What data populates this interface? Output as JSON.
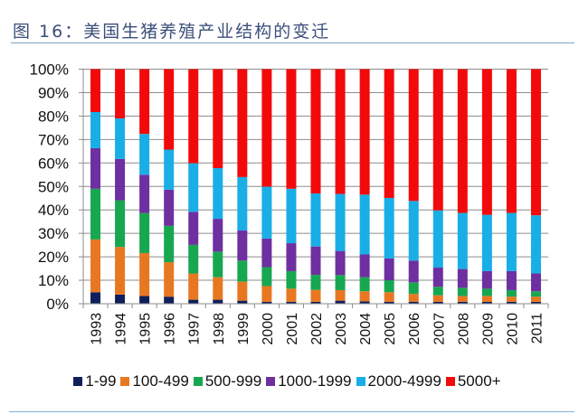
{
  "header": {
    "title": "图 16：美国生猪养殖产业结构的变迁"
  },
  "chart_data": {
    "type": "bar",
    "stacked": true,
    "percent_stacked": true,
    "title": "图 16：美国生猪养殖产业结构的变迁",
    "xlabel": "",
    "ylabel": "",
    "ylim": [
      0,
      100
    ],
    "yticks": [
      "0%",
      "10%",
      "20%",
      "30%",
      "40%",
      "50%",
      "60%",
      "70%",
      "80%",
      "90%",
      "100%"
    ],
    "grid": true,
    "legend_position": "bottom",
    "categories": [
      "1993",
      "1994",
      "1995",
      "1996",
      "1997",
      "1998",
      "1999",
      "2000",
      "2001",
      "2002",
      "2003",
      "2004",
      "2005",
      "2006",
      "2007",
      "2008",
      "2009",
      "2010",
      "2011"
    ],
    "series": [
      {
        "name": "1-99",
        "color": "#0e1f5b",
        "values": [
          4.9,
          3.9,
          3.3,
          3.0,
          1.7,
          1.7,
          1.3,
          0.8,
          0.8,
          0.8,
          1.3,
          1.0,
          0.8,
          0.8,
          0.8,
          0.8,
          0.8,
          0.8,
          0.8
        ]
      },
      {
        "name": "100-499",
        "color": "#e87722",
        "values": [
          22.5,
          20.3,
          18.3,
          14.7,
          11.2,
          9.6,
          8.1,
          6.7,
          5.6,
          5.1,
          4.5,
          4.3,
          4.1,
          3.4,
          2.8,
          2.5,
          2.5,
          2.2,
          2.2
        ]
      },
      {
        "name": "500-999",
        "color": "#17a750",
        "values": [
          21.6,
          19.9,
          17.1,
          15.5,
          12.2,
          10.9,
          9.0,
          8.1,
          7.5,
          6.4,
          6.4,
          6.0,
          5.1,
          4.9,
          3.6,
          3.5,
          3.1,
          2.8,
          2.3
        ]
      },
      {
        "name": "1000-1999",
        "color": "#6e2fa0",
        "values": [
          17.3,
          17.6,
          16.3,
          15.4,
          14.1,
          14.0,
          12.8,
          12.2,
          11.9,
          12.1,
          10.3,
          9.7,
          9.3,
          9.3,
          8.2,
          8.0,
          7.5,
          8.1,
          7.6
        ]
      },
      {
        "name": "2000-4999",
        "color": "#19aee6",
        "values": [
          15.4,
          17.3,
          17.4,
          17.1,
          20.7,
          21.6,
          22.8,
          22.1,
          23.2,
          22.6,
          24.3,
          25.5,
          25.8,
          25.4,
          24.4,
          23.9,
          24.0,
          24.8,
          24.8
        ]
      },
      {
        "name": "5000+",
        "color": "#f20a0a",
        "values": [
          18.3,
          21.0,
          27.6,
          34.3,
          40.1,
          42.2,
          46.0,
          50.1,
          51.0,
          53.0,
          53.2,
          53.5,
          54.9,
          56.2,
          60.2,
          61.3,
          62.1,
          61.3,
          62.3
        ]
      }
    ]
  }
}
